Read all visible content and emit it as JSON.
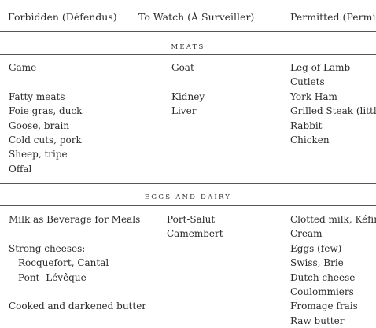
{
  "headers": {
    "forbidden": "Forbidden (Défendus)",
    "to_watch": "To Watch (À Surveiller)",
    "permitted": "Permitted (Permis)"
  },
  "sections": {
    "meats": {
      "title": "MEATS",
      "forbidden": [
        "Game",
        "",
        "Fatty meats",
        "Foie gras, duck",
        "Goose, brain",
        "Cold cuts, pork",
        "Sheep, tripe",
        "Offal"
      ],
      "to_watch": [
        "Goat",
        "",
        "Kidney",
        "Liver"
      ],
      "permitted": [
        "Leg of Lamb",
        "Cutlets",
        "York Ham",
        "Grilled Steak (little)",
        "Rabbit",
        "Chicken"
      ]
    },
    "eggs_dairy": {
      "title": "EGGS AND DAIRY",
      "forbidden": [
        "Milk as Beverage for Meals",
        "",
        "Strong cheeses:",
        "Rocquefort, Cantal",
        "Pont- Lévêque",
        "",
        "Cooked and darkened butter"
      ],
      "to_watch": [
        "Port-Salut",
        "Camembert"
      ],
      "permitted": [
        "Clotted milk, Kéfir",
        "Cream",
        "Eggs (few)",
        "Swiss, Brie",
        "Dutch cheese",
        "Coulommiers",
        "Fromage frais",
        "Raw butter"
      ]
    }
  }
}
